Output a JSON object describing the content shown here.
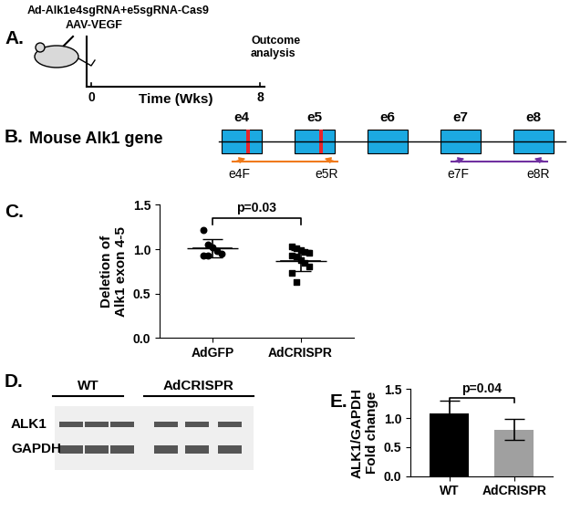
{
  "panels": {
    "A": {
      "label": "A.",
      "construct": "Ad-Alk1e4sgRNA+e5sgRNA-Cas9",
      "vector": "AAV-VEGF",
      "end_label": "Outcome\nanalysis",
      "axis_label": "Time (Wks)",
      "ticks": [
        0,
        8
      ]
    },
    "B": {
      "label": "B.",
      "title": "Mouse Alk1 gene",
      "exons": [
        "e4",
        "e5",
        "e6",
        "e7",
        "e8"
      ],
      "primers": [
        "e4F",
        "e5R",
        "e7F",
        "e8R"
      ]
    },
    "D": {
      "label": "D.",
      "groups": [
        "WT",
        "AdCRISPR"
      ],
      "rows": [
        "ALK1",
        "GAPDH"
      ]
    }
  },
  "chart_data": [
    {
      "panel": "C.",
      "type": "scatter",
      "categories": [
        "AdGFP",
        "AdCRISPR"
      ],
      "values": [
        [
          1.22,
          1.05,
          1.02,
          0.98,
          0.95,
          0.93,
          0.93
        ],
        [
          1.03,
          1.01,
          0.99,
          0.97,
          0.96,
          0.93,
          0.92,
          0.88,
          0.85,
          0.8,
          0.73,
          0.63
        ]
      ],
      "mean": [
        1.01,
        0.87
      ],
      "sd": [
        0.1,
        0.12
      ],
      "color": "#000000",
      "y_label": "Deletion of\nAlk1 exon 4-5",
      "annotation": "p=0.03",
      "ylim": [
        0.0,
        1.5
      ],
      "yticks": [
        0.0,
        0.5,
        1.0,
        1.5
      ]
    },
    {
      "panel": "E.",
      "type": "bar",
      "categories": [
        "WT",
        "AdCRISPR"
      ],
      "values": [
        1.08,
        0.8
      ],
      "error": [
        0.22,
        0.18
      ],
      "colors": [
        "#000000",
        "#a0a0a0"
      ],
      "y_label": "ALK1/GAPDH\nFold change",
      "annotation": "p=0.04",
      "ylim": [
        0.0,
        1.5
      ],
      "yticks": [
        0.0,
        0.5,
        1.0,
        1.5
      ]
    }
  ]
}
